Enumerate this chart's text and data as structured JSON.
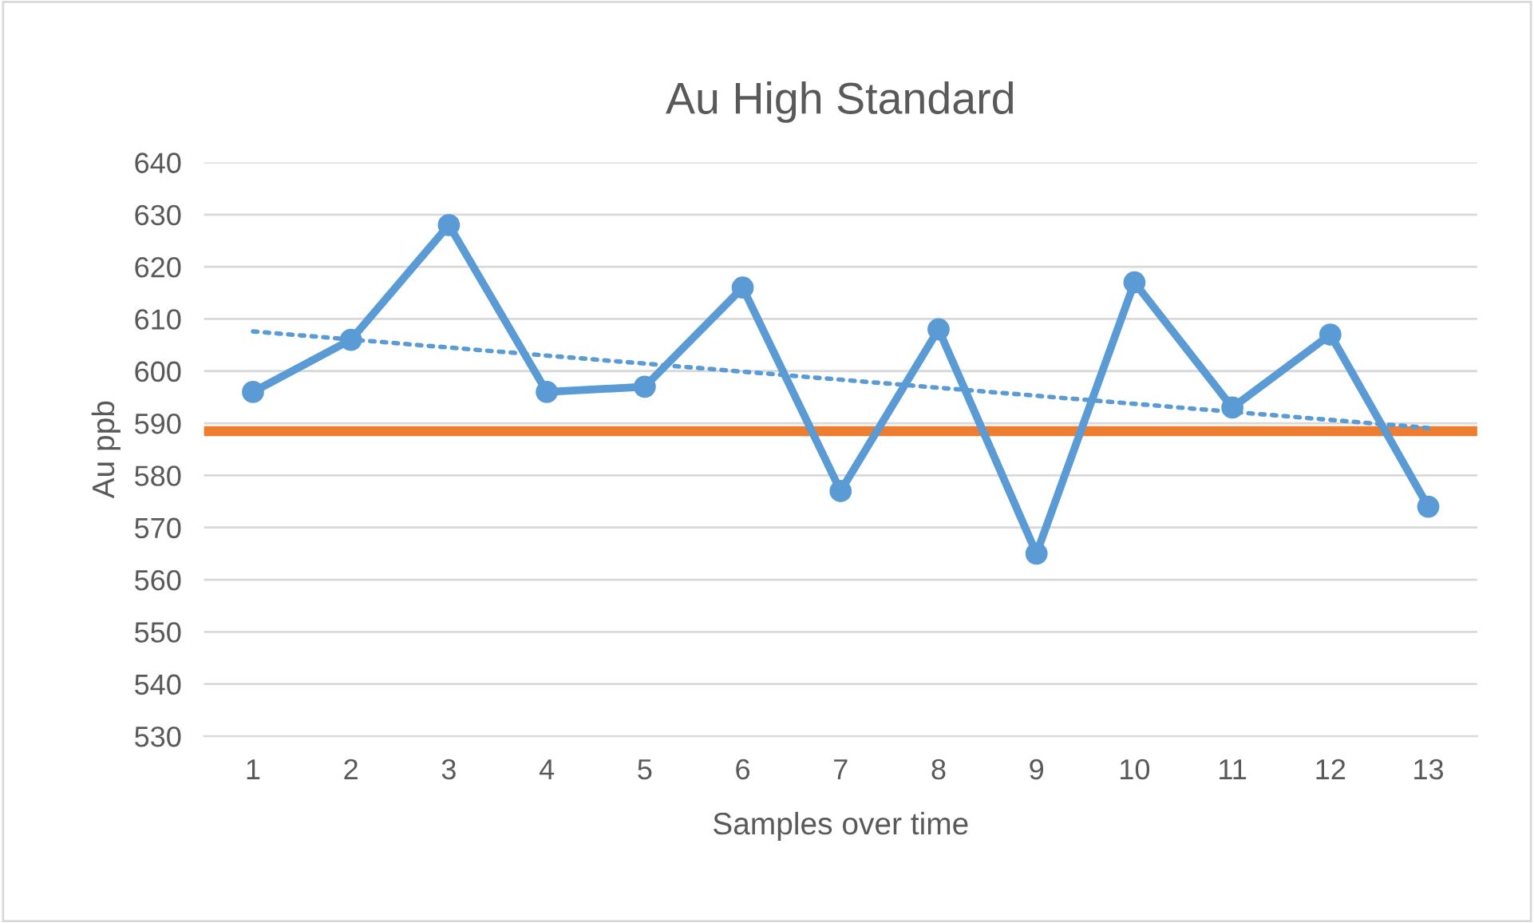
{
  "chart_data": {
    "type": "line",
    "title": "Au High Standard",
    "xlabel": "Samples over time",
    "ylabel": "Au ppb",
    "x": [
      1,
      2,
      3,
      4,
      5,
      6,
      7,
      8,
      9,
      10,
      11,
      12,
      13
    ],
    "series": [
      {
        "color": "#5b9bd5",
        "values": [
          596,
          606,
          628,
          596,
          597,
          616,
          577,
          608,
          565,
          617,
          593,
          607,
          574
        ],
        "marker": "circle",
        "line_style": "solid"
      },
      {
        "type": "line",
        "color": "#5b9bd5",
        "x": [
          1,
          13
        ],
        "values": [
          607.6,
          589.1
        ],
        "marker": "none",
        "line_style": "dotted"
      }
    ],
    "ref_lines": [
      {
        "axis": "y",
        "value": 588.5,
        "label": null,
        "color": "#ed7d31"
      }
    ],
    "xlim": [
      0.5,
      13.5
    ],
    "xticks": [
      1,
      2,
      3,
      4,
      5,
      6,
      7,
      8,
      9,
      10,
      11,
      12,
      13
    ],
    "ylim": [
      530,
      640
    ],
    "yticks": [
      530,
      540,
      550,
      560,
      570,
      580,
      590,
      600,
      610,
      620,
      630,
      640
    ],
    "grid": "y",
    "legend": false
  }
}
